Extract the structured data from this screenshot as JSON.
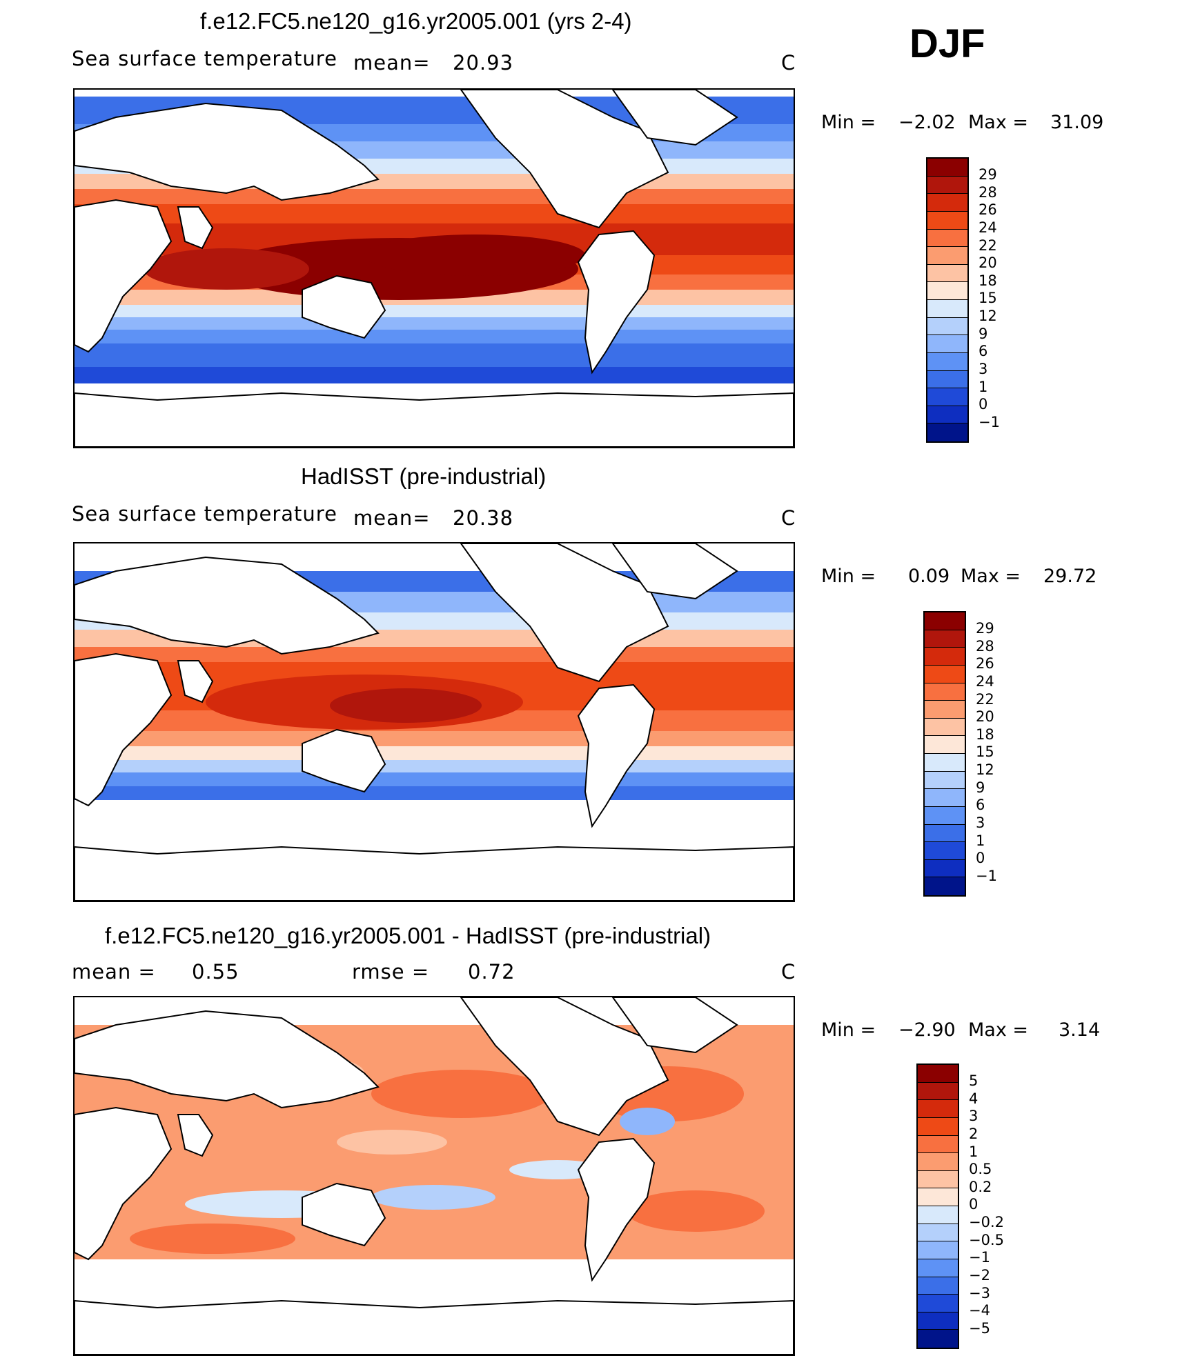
{
  "season": "DJF",
  "panels": [
    {
      "id": "model",
      "title": "f.e12.FC5.ne120_g16.yr2005.001 (yrs 2-4)",
      "left_label": "Sea surface temperature",
      "mean_label": "mean=",
      "mean_value": "20.93",
      "units": "C",
      "min_label": "Min =",
      "min_value": "−2.02",
      "max_label": "Max =",
      "max_value": "31.09",
      "colorbar_ticks": [
        "29",
        "28",
        "26",
        "24",
        "22",
        "20",
        "18",
        "15",
        "12",
        "9",
        "6",
        "3",
        "1",
        "0",
        "−1"
      ]
    },
    {
      "id": "obs",
      "title": "HadISST (pre-industrial)",
      "left_label": "Sea surface temperature",
      "mean_label": "mean=",
      "mean_value": "20.38",
      "units": "C",
      "min_label": "Min =",
      "min_value": "0.09",
      "max_label": "Max =",
      "max_value": "29.72",
      "colorbar_ticks": [
        "29",
        "28",
        "26",
        "24",
        "22",
        "20",
        "18",
        "15",
        "12",
        "9",
        "6",
        "3",
        "1",
        "0",
        "−1"
      ]
    },
    {
      "id": "diff",
      "title": "f.e12.FC5.ne120_g16.yr2005.001 - HadISST (pre-industrial)",
      "mean_label": "mean =",
      "mean_value": "0.55",
      "rmse_label": "rmse =",
      "rmse_value": "0.72",
      "units": "C",
      "min_label": "Min =",
      "min_value": "−2.90",
      "max_label": "Max =",
      "max_value": "3.14",
      "colorbar_ticks": [
        "5",
        "4",
        "3",
        "2",
        "1",
        "0.5",
        "0.2",
        "0",
        "−0.2",
        "−0.5",
        "−1",
        "−2",
        "−3",
        "−4",
        "−5"
      ]
    }
  ],
  "colors": {
    "sst_scale": [
      "#8b0000",
      "#b0160c",
      "#d42a0c",
      "#ee4a16",
      "#f87040",
      "#fb9c70",
      "#fdc3a4",
      "#fde7d8",
      "#d8e9fb",
      "#b4d0fb",
      "#8fb6fb",
      "#5e92f5",
      "#3b6fe8",
      "#1f4ad8",
      "#0e2ec0",
      "#00148a"
    ],
    "diff_scale": [
      "#8b0000",
      "#b0160c",
      "#d42a0c",
      "#ee4a16",
      "#f87040",
      "#fb9c70",
      "#fdc3a4",
      "#fde7d8",
      "#d8e9fb",
      "#b4d0fb",
      "#8fb6fb",
      "#5e92f5",
      "#3b6fe8",
      "#1f4ad8",
      "#0e2ec0",
      "#00148a"
    ]
  },
  "chart_data": [
    {
      "type": "heatmap",
      "title": "f.e12.FC5.ne120_g16.yr2005.001 (yrs 2-4)",
      "variable": "Sea surface temperature",
      "units": "C",
      "season": "DJF",
      "mean": 20.93,
      "min": -2.02,
      "max": 31.09,
      "contour_levels": [
        -1,
        0,
        1,
        3,
        6,
        9,
        12,
        15,
        18,
        20,
        22,
        24,
        26,
        28,
        29
      ]
    },
    {
      "type": "heatmap",
      "title": "HadISST (pre-industrial)",
      "variable": "Sea surface temperature",
      "units": "C",
      "season": "DJF",
      "mean": 20.38,
      "min": 0.09,
      "max": 29.72,
      "contour_levels": [
        -1,
        0,
        1,
        3,
        6,
        9,
        12,
        15,
        18,
        20,
        22,
        24,
        26,
        28,
        29
      ]
    },
    {
      "type": "heatmap",
      "title": "f.e12.FC5.ne120_g16.yr2005.001 - HadISST (pre-industrial)",
      "units": "C",
      "season": "DJF",
      "mean": 0.55,
      "rmse": 0.72,
      "min": -2.9,
      "max": 3.14,
      "contour_levels": [
        -5,
        -4,
        -3,
        -2,
        -1,
        -0.5,
        -0.2,
        0,
        0.2,
        0.5,
        1,
        2,
        3,
        4,
        5
      ]
    }
  ]
}
